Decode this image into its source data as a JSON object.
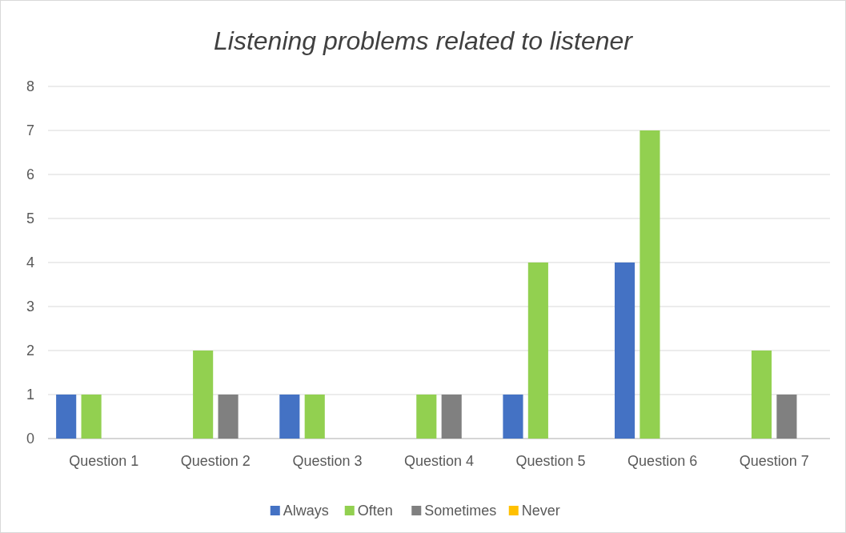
{
  "chart_data": {
    "type": "bar",
    "title": "Listening problems related to listener",
    "categories": [
      "Question 1",
      "Question 2",
      "Question 3",
      "Question 4",
      "Question 5",
      "Question 6",
      "Question 7"
    ],
    "series": [
      {
        "name": "Always",
        "color": "#4472c4",
        "values": [
          1,
          0,
          1,
          0,
          1,
          4,
          0
        ]
      },
      {
        "name": "Often",
        "color": "#92d050",
        "values": [
          1,
          2,
          1,
          1,
          4,
          7,
          2
        ]
      },
      {
        "name": "Sometimes",
        "color": "#808080",
        "values": [
          0,
          1,
          0,
          1,
          0,
          0,
          1
        ]
      },
      {
        "name": "Never",
        "color": "#ffc000",
        "values": [
          0,
          0,
          0,
          0,
          0,
          0,
          0
        ]
      }
    ],
    "ylim": [
      0,
      8
    ],
    "yticks": [
      0,
      1,
      2,
      3,
      4,
      5,
      6,
      7,
      8
    ],
    "grid": "y",
    "legend": "bottom"
  }
}
